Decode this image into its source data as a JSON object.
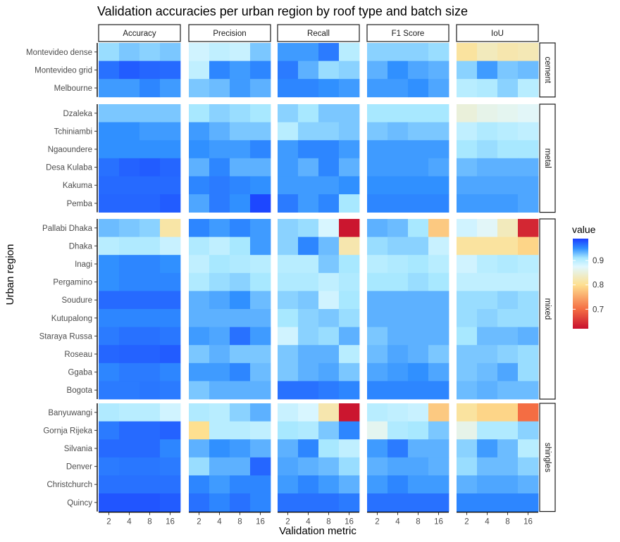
{
  "chart_data": {
    "type": "heatmap",
    "title": "Validation accuracies per urban region by roof type and batch size",
    "xlabel": "Validation metric",
    "ylabel": "Urban region",
    "metrics": [
      "Accuracy",
      "Precision",
      "Recall",
      "F1 Score",
      "IoU"
    ],
    "batch_sizes": [
      "2",
      "4",
      "8",
      "16"
    ],
    "legend": {
      "title": "value",
      "ticks": [
        0.7,
        0.8,
        0.9
      ],
      "tick_labels": [
        "0.7",
        "0.8",
        "0.9"
      ],
      "range": [
        0.62,
        0.99
      ],
      "colors": [
        "#c8102e",
        "#f46d43",
        "#fee090",
        "#e0f8ff",
        "#a8e8ff",
        "#3090ff",
        "#1a3cff"
      ]
    },
    "groups": [
      {
        "name": "cement",
        "regions": [
          "Montevideo dense",
          "Montevideo grid",
          "Melbourne"
        ],
        "values": [
          [
            [
              0.915,
              0.925,
              0.92,
              0.925
            ],
            [
              0.885,
              0.895,
              0.89,
              0.925
            ],
            [
              0.945,
              0.945,
              0.96,
              0.9
            ],
            [
              0.92,
              0.92,
              0.92,
              0.915
            ],
            [
              0.81,
              0.83,
              0.82,
              0.825
            ]
          ],
          [
            [
              0.965,
              0.975,
              0.97,
              0.968
            ],
            [
              0.895,
              0.955,
              0.945,
              0.955
            ],
            [
              0.96,
              0.935,
              0.915,
              0.92
            ],
            [
              0.935,
              0.95,
              0.94,
              0.935
            ],
            [
              0.92,
              0.945,
              0.925,
              0.93
            ]
          ],
          [
            [
              0.945,
              0.945,
              0.955,
              0.945
            ],
            [
              0.925,
              0.93,
              0.945,
              0.935
            ],
            [
              0.955,
              0.955,
              0.95,
              0.945
            ],
            [
              0.945,
              0.945,
              0.95,
              0.94
            ],
            [
              0.9,
              0.905,
              0.92,
              0.9
            ]
          ]
        ]
      },
      {
        "name": "metal",
        "regions": [
          "Dzaleka",
          "Tchiniambi",
          "Ngaoundere",
          "Desa Kulaba",
          "Kakuma",
          "Pemba"
        ],
        "values": [
          [
            [
              0.925,
              0.925,
              0.925,
              0.925
            ],
            [
              0.91,
              0.92,
              0.915,
              0.91
            ],
            [
              0.92,
              0.91,
              0.925,
              0.925
            ],
            [
              0.91,
              0.91,
              0.91,
              0.91
            ],
            [
              0.85,
              0.86,
              0.865,
              0.87
            ]
          ],
          [
            [
              0.95,
              0.95,
              0.945,
              0.945
            ],
            [
              0.945,
              0.935,
              0.925,
              0.925
            ],
            [
              0.9,
              0.92,
              0.92,
              0.925
            ],
            [
              0.925,
              0.93,
              0.925,
              0.925
            ],
            [
              0.895,
              0.905,
              0.9,
              0.895
            ]
          ],
          [
            [
              0.95,
              0.95,
              0.95,
              0.95
            ],
            [
              0.95,
              0.945,
              0.945,
              0.955
            ],
            [
              0.945,
              0.955,
              0.955,
              0.945
            ],
            [
              0.945,
              0.945,
              0.945,
              0.945
            ],
            [
              0.91,
              0.915,
              0.91,
              0.91
            ]
          ],
          [
            [
              0.965,
              0.972,
              0.975,
              0.97
            ],
            [
              0.935,
              0.955,
              0.935,
              0.935
            ],
            [
              0.945,
              0.935,
              0.955,
              0.935
            ],
            [
              0.945,
              0.945,
              0.945,
              0.94
            ],
            [
              0.93,
              0.935,
              0.935,
              0.935
            ]
          ],
          [
            [
              0.968,
              0.968,
              0.968,
              0.968
            ],
            [
              0.955,
              0.96,
              0.955,
              0.95
            ],
            [
              0.945,
              0.945,
              0.945,
              0.95
            ],
            [
              0.95,
              0.95,
              0.95,
              0.95
            ],
            [
              0.94,
              0.94,
              0.94,
              0.94
            ]
          ],
          [
            [
              0.97,
              0.97,
              0.97,
              0.975
            ],
            [
              0.94,
              0.96,
              0.95,
              0.985
            ],
            [
              0.96,
              0.945,
              0.955,
              0.91
            ],
            [
              0.955,
              0.955,
              0.955,
              0.955
            ],
            [
              0.945,
              0.945,
              0.945,
              0.94
            ]
          ]
        ]
      },
      {
        "name": "mixed",
        "regions": [
          "Pallabi Dhaka",
          "Dhaka",
          "Inagi",
          "Pergamino",
          "Soudure",
          "Kutupalong",
          "Staraya Russa",
          "Roseau",
          "Ggaba",
          "Bogota"
        ],
        "values": [
          [
            [
              0.93,
              0.925,
              0.92,
              0.815
            ],
            [
              0.955,
              0.945,
              0.955,
              0.945
            ],
            [
              0.92,
              0.915,
              0.88,
              0.625
            ],
            [
              0.935,
              0.93,
              0.91,
              0.78
            ],
            [
              0.885,
              0.87,
              0.83,
              0.64
            ]
          ],
          [
            [
              0.9,
              0.905,
              0.905,
              0.89
            ],
            [
              0.905,
              0.895,
              0.91,
              0.945
            ],
            [
              0.92,
              0.955,
              0.93,
              0.82
            ],
            [
              0.915,
              0.92,
              0.92,
              0.89
            ],
            [
              0.81,
              0.81,
              0.81,
              0.79
            ]
          ],
          [
            [
              0.95,
              0.955,
              0.955,
              0.95
            ],
            [
              0.895,
              0.91,
              0.905,
              0.9
            ],
            [
              0.9,
              0.9,
              0.925,
              0.91
            ],
            [
              0.9,
              0.905,
              0.91,
              0.9
            ],
            [
              0.885,
              0.9,
              0.905,
              0.9
            ]
          ],
          [
            [
              0.95,
              0.955,
              0.955,
              0.955
            ],
            [
              0.905,
              0.915,
              0.92,
              0.91
            ],
            [
              0.905,
              0.905,
              0.895,
              0.905
            ],
            [
              0.91,
              0.91,
              0.915,
              0.91
            ],
            [
              0.895,
              0.895,
              0.895,
              0.895
            ]
          ],
          [
            [
              0.968,
              0.968,
              0.968,
              0.968
            ],
            [
              0.935,
              0.94,
              0.95,
              0.93
            ],
            [
              0.92,
              0.925,
              0.885,
              0.91
            ],
            [
              0.935,
              0.935,
              0.935,
              0.935
            ],
            [
              0.915,
              0.915,
              0.92,
              0.915
            ]
          ],
          [
            [
              0.955,
              0.955,
              0.955,
              0.955
            ],
            [
              0.935,
              0.935,
              0.935,
              0.935
            ],
            [
              0.91,
              0.92,
              0.925,
              0.915
            ],
            [
              0.935,
              0.935,
              0.935,
              0.935
            ],
            [
              0.915,
              0.92,
              0.915,
              0.915
            ]
          ],
          [
            [
              0.96,
              0.965,
              0.965,
              0.962
            ],
            [
              0.945,
              0.94,
              0.965,
              0.945
            ],
            [
              0.885,
              0.92,
              0.915,
              0.935
            ],
            [
              0.925,
              0.935,
              0.935,
              0.935
            ],
            [
              0.91,
              0.93,
              0.93,
              0.935
            ]
          ],
          [
            [
              0.97,
              0.972,
              0.972,
              0.975
            ],
            [
              0.925,
              0.935,
              0.925,
              0.925
            ],
            [
              0.925,
              0.935,
              0.935,
              0.9
            ],
            [
              0.93,
              0.94,
              0.935,
              0.925
            ],
            [
              0.925,
              0.925,
              0.92,
              0.915
            ]
          ],
          [
            [
              0.955,
              0.96,
              0.96,
              0.955
            ],
            [
              0.945,
              0.945,
              0.955,
              0.93
            ],
            [
              0.925,
              0.935,
              0.94,
              0.925
            ],
            [
              0.94,
              0.945,
              0.95,
              0.94
            ],
            [
              0.925,
              0.93,
              0.94,
              0.915
            ]
          ],
          [
            [
              0.96,
              0.96,
              0.962,
              0.96
            ],
            [
              0.925,
              0.935,
              0.935,
              0.935
            ],
            [
              0.965,
              0.965,
              0.96,
              0.955
            ],
            [
              0.955,
              0.955,
              0.955,
              0.955
            ],
            [
              0.93,
              0.935,
              0.93,
              0.93
            ]
          ]
        ]
      },
      {
        "name": "shingles",
        "regions": [
          "Banyuwangi",
          "Gornja Rijeka",
          "Silvania",
          "Denver",
          "Christchurch",
          "Quincy"
        ],
        "values": [
          [
            [
              0.905,
              0.9,
              0.9,
              0.885
            ],
            [
              0.905,
              0.9,
              0.92,
              0.935
            ],
            [
              0.89,
              0.88,
              0.82,
              0.625
            ],
            [
              0.9,
              0.895,
              0.89,
              0.78
            ],
            [
              0.81,
              0.79,
              0.79,
              0.7
            ]
          ],
          [
            [
              0.96,
              0.968,
              0.968,
              0.972
            ],
            [
              0.8,
              0.9,
              0.9,
              0.895
            ],
            [
              0.91,
              0.905,
              0.925,
              0.955
            ],
            [
              0.865,
              0.905,
              0.91,
              0.925
            ],
            [
              0.86,
              0.905,
              0.905,
              0.92
            ]
          ],
          [
            [
              0.968,
              0.968,
              0.968,
              0.955
            ],
            [
              0.935,
              0.95,
              0.945,
              0.935
            ],
            [
              0.935,
              0.955,
              0.91,
              0.895
            ],
            [
              0.945,
              0.96,
              0.935,
              0.935
            ],
            [
              0.92,
              0.945,
              0.93,
              0.9
            ]
          ],
          [
            [
              0.96,
              0.962,
              0.962,
              0.96
            ],
            [
              0.915,
              0.935,
              0.935,
              0.97
            ],
            [
              0.94,
              0.935,
              0.93,
              0.915
            ],
            [
              0.935,
              0.94,
              0.94,
              0.935
            ],
            [
              0.915,
              0.93,
              0.93,
              0.92
            ]
          ],
          [
            [
              0.965,
              0.965,
              0.965,
              0.965
            ],
            [
              0.955,
              0.945,
              0.955,
              0.955
            ],
            [
              0.945,
              0.955,
              0.945,
              0.935
            ],
            [
              0.945,
              0.955,
              0.945,
              0.945
            ],
            [
              0.935,
              0.94,
              0.94,
              0.935
            ]
          ],
          [
            [
              0.978,
              0.978,
              0.978,
              0.975
            ],
            [
              0.965,
              0.955,
              0.965,
              0.955
            ],
            [
              0.965,
              0.965,
              0.965,
              0.96
            ],
            [
              0.965,
              0.965,
              0.965,
              0.965
            ],
            [
              0.955,
              0.955,
              0.955,
              0.955
            ]
          ]
        ]
      }
    ]
  }
}
